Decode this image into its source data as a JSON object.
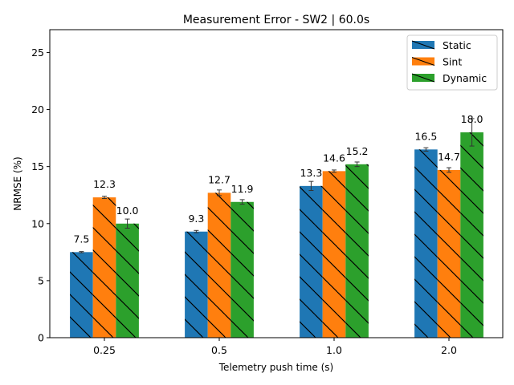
{
  "chart_data": {
    "type": "bar",
    "title": "Measurement Error - SW2 | 60.0s",
    "xlabel": "Telemetry push time (s)",
    "ylabel": "NRMSE (%)",
    "categories": [
      "0.25",
      "0.5",
      "1.0",
      "2.0"
    ],
    "ylim": [
      0,
      27
    ],
    "yticks": [
      0,
      5,
      10,
      15,
      20,
      25
    ],
    "grid": false,
    "legend_position": "top-right",
    "series": [
      {
        "name": "Static",
        "color": "#1f77b4",
        "values": [
          7.5,
          9.3,
          13.3,
          16.5
        ],
        "errors": [
          0.05,
          0.1,
          0.4,
          0.15
        ],
        "labels": [
          "7.5",
          "9.3",
          "13.3",
          "16.5"
        ]
      },
      {
        "name": "Sint",
        "color": "#ff7f0e",
        "values": [
          12.3,
          12.7,
          14.6,
          14.7
        ],
        "errors": [
          0.1,
          0.25,
          0.1,
          0.2
        ],
        "labels": [
          "12.3",
          "12.7",
          "14.6",
          "14.7"
        ]
      },
      {
        "name": "Dynamic",
        "color": "#2ca02c",
        "values": [
          10.0,
          11.9,
          15.2,
          18.0
        ],
        "errors": [
          0.4,
          0.2,
          0.2,
          1.2
        ],
        "labels": [
          "10.0",
          "11.9",
          "15.2",
          "18.0"
        ]
      }
    ]
  }
}
